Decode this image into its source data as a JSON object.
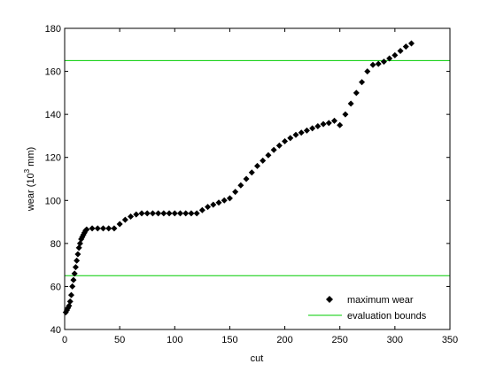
{
  "chart_data": {
    "type": "scatter",
    "xlabel": "cut",
    "ylabel": {
      "prefix": "wear (10",
      "sup": "3",
      "suffix": " mm)"
    },
    "xlim": [
      0,
      350
    ],
    "ylim": [
      40,
      180
    ],
    "xticks": [
      "0",
      "50",
      "100",
      "150",
      "200",
      "250",
      "300",
      "350"
    ],
    "yticks": [
      "40",
      "60",
      "80",
      "100",
      "120",
      "140",
      "160",
      "180"
    ],
    "legend_position": "bottom-right",
    "series": [
      {
        "name": "maximum wear",
        "style": "diamond-markers",
        "color": "#000000",
        "points": [
          [
            1,
            48
          ],
          [
            2,
            49
          ],
          [
            3,
            50
          ],
          [
            4,
            51
          ],
          [
            5,
            53
          ],
          [
            6,
            56
          ],
          [
            7,
            60
          ],
          [
            8,
            63
          ],
          [
            9,
            66
          ],
          [
            10,
            69
          ],
          [
            11,
            72
          ],
          [
            12,
            75
          ],
          [
            13,
            78
          ],
          [
            14,
            80
          ],
          [
            15,
            82
          ],
          [
            16,
            83
          ],
          [
            17,
            84
          ],
          [
            18,
            85
          ],
          [
            19,
            86
          ],
          [
            20,
            86.5
          ],
          [
            25,
            87
          ],
          [
            30,
            87
          ],
          [
            35,
            87
          ],
          [
            40,
            87
          ],
          [
            45,
            87
          ],
          [
            50,
            89
          ],
          [
            55,
            91
          ],
          [
            60,
            92.5
          ],
          [
            65,
            93.5
          ],
          [
            70,
            94
          ],
          [
            75,
            94
          ],
          [
            80,
            94
          ],
          [
            85,
            94
          ],
          [
            90,
            94
          ],
          [
            95,
            94
          ],
          [
            100,
            94
          ],
          [
            105,
            94
          ],
          [
            110,
            94
          ],
          [
            115,
            94
          ],
          [
            120,
            94
          ],
          [
            125,
            95.5
          ],
          [
            130,
            97
          ],
          [
            135,
            98
          ],
          [
            140,
            99
          ],
          [
            145,
            100
          ],
          [
            150,
            101
          ],
          [
            155,
            104
          ],
          [
            160,
            107
          ],
          [
            165,
            110
          ],
          [
            170,
            113
          ],
          [
            175,
            116
          ],
          [
            180,
            118.5
          ],
          [
            185,
            121
          ],
          [
            190,
            123.5
          ],
          [
            195,
            125.5
          ],
          [
            200,
            127.5
          ],
          [
            205,
            129
          ],
          [
            210,
            130.5
          ],
          [
            215,
            131.5
          ],
          [
            220,
            132.5
          ],
          [
            225,
            133.5
          ],
          [
            230,
            134.5
          ],
          [
            235,
            135.5
          ],
          [
            240,
            136
          ],
          [
            245,
            137
          ],
          [
            250,
            135
          ],
          [
            255,
            140
          ],
          [
            260,
            145
          ],
          [
            265,
            150
          ],
          [
            270,
            155
          ],
          [
            275,
            160
          ],
          [
            280,
            163
          ],
          [
            285,
            163.5
          ],
          [
            290,
            164.5
          ],
          [
            295,
            166
          ],
          [
            300,
            167.5
          ],
          [
            305,
            169.5
          ],
          [
            310,
            171.5
          ],
          [
            315,
            173
          ]
        ]
      },
      {
        "name": "evaluation bounds",
        "style": "hlines",
        "color": "#00cc00",
        "values": [
          65,
          165
        ]
      }
    ]
  }
}
